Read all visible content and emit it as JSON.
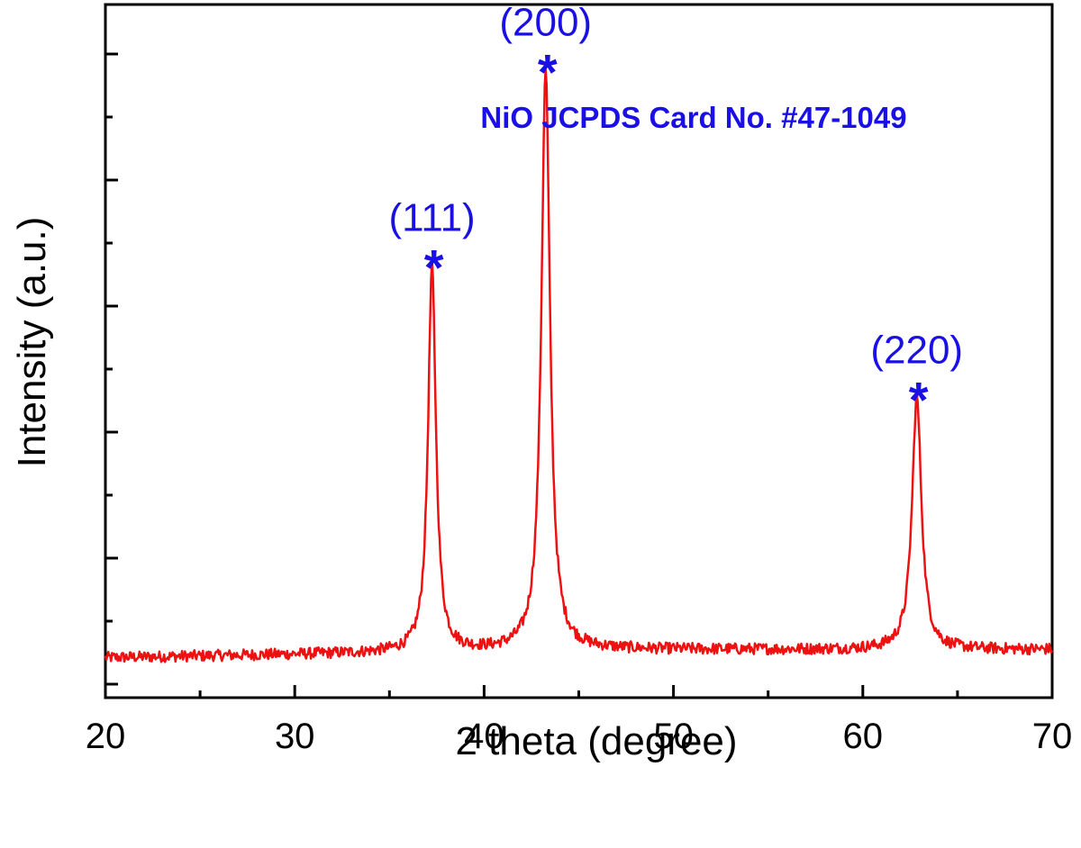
{
  "chart_data": {
    "type": "line",
    "xlabel": "2 theta (degree)",
    "ylabel": "Intensity (a.u.)",
    "xlim": [
      20,
      70
    ],
    "ylim": [
      0,
      100
    ],
    "x_ticks": [
      20,
      30,
      40,
      50,
      60,
      70
    ],
    "y_tick_labels_shown": false,
    "grid": false,
    "annotation": "NiO JCPDS Card No. #47-1049",
    "colors": {
      "line": "#ee1111",
      "annotation": "#1a10e6",
      "axis": "#000000"
    },
    "series": [
      {
        "baseline": 5.5,
        "noise": 0.9,
        "peaks": [
          {
            "x": 37.25,
            "height": 61,
            "fwhm": 0.5
          },
          {
            "x": 43.25,
            "height": 92,
            "fwhm": 0.55
          },
          {
            "x": 62.85,
            "height": 40,
            "fwhm": 0.6
          }
        ]
      }
    ],
    "peak_labels": [
      {
        "label": "(111)",
        "x": 37.25,
        "marker": "*"
      },
      {
        "label": "(200)",
        "x": 43.25,
        "marker": "*"
      },
      {
        "label": "(220)",
        "x": 62.85,
        "marker": "*"
      }
    ]
  }
}
